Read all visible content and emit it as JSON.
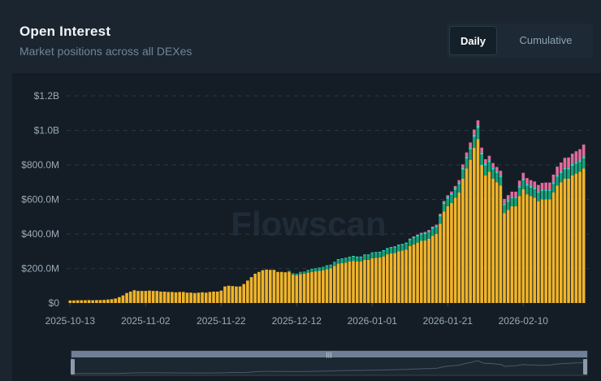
{
  "header": {
    "title": "Open Interest",
    "subtitle": "Market positions across all DEXes"
  },
  "toggle": {
    "daily_label": "Daily",
    "cumulative_label": "Cumulative",
    "selected": "Daily"
  },
  "watermark": "Flowscan",
  "colors": {
    "series_1": "#f0b429",
    "series_2": "#16a37b",
    "series_3": "#3fd4c6",
    "series_4": "#e06b9a",
    "grid": "#2a3642",
    "background": "#141d26"
  },
  "chart_data": {
    "type": "bar",
    "stacked": true,
    "title": "Open Interest",
    "subtitle": "Market positions across all DEXes",
    "xlabel": "",
    "ylabel": "",
    "ylim": [
      0,
      1200000000
    ],
    "y_tick_values": [
      0,
      200000000,
      400000000,
      600000000,
      800000000,
      1000000000,
      1200000000
    ],
    "y_tick_labels": [
      "$0",
      "$200.0M",
      "$400.0M",
      "$600.0M",
      "$800.0M",
      "$1.0B",
      "$1.2B"
    ],
    "x_tick_labels": [
      "2025-10-13",
      "2025-11-02",
      "2025-11-22",
      "2025-12-12",
      "2026-01-01",
      "2026-01-21",
      "2026-02-10"
    ],
    "x_tick_indices": [
      0,
      20,
      40,
      60,
      80,
      100,
      120
    ],
    "grid": true,
    "legend": "none",
    "series": [
      {
        "values": [
          15,
          15,
          16,
          16,
          16,
          17,
          16,
          17,
          17,
          18,
          20,
          22,
          26,
          34,
          44,
          58,
          66,
          74,
          70,
          70,
          70,
          72,
          70,
          70,
          66,
          66,
          64,
          64,
          62,
          64,
          64,
          60,
          60,
          58,
          60,
          62,
          60,
          64,
          66,
          66,
          72,
          96,
          100,
          98,
          96,
          96,
          110,
          130,
          150,
          170,
          180,
          190,
          194,
          192,
          192,
          180,
          180,
          178,
          180,
          164,
          160,
          168,
          170,
          176,
          180,
          184,
          186,
          190,
          196,
          200,
          214,
          228,
          232,
          234,
          240,
          244,
          240,
          240,
          250,
          250,
          260,
          262,
          264,
          270,
          282,
          288,
          290,
          300,
          304,
          310,
          330,
          340,
          350,
          360,
          362,
          372,
          390,
          400,
          460,
          530,
          560,
          580,
          610,
          640,
          720,
          780,
          830,
          900,
          950,
          800,
          740,
          760,
          720,
          700,
          680,
          520,
          540,
          560,
          560,
          620,
          660,
          630,
          620,
          610,
          590,
          600,
          600,
          600,
          640,
          680,
          700,
          720,
          720,
          740,
          750,
          760,
          780
        ],
        "unit": "$M"
      },
      {
        "values": [
          0,
          0,
          0,
          0,
          0,
          0,
          0,
          0,
          0,
          0,
          0,
          0,
          0,
          0,
          0,
          0,
          0,
          0,
          0,
          0,
          0,
          0,
          0,
          0,
          0,
          0,
          0,
          0,
          0,
          0,
          0,
          0,
          0,
          0,
          0,
          0,
          0,
          0,
          0,
          0,
          0,
          0,
          0,
          0,
          0,
          0,
          0,
          0,
          0,
          0,
          0,
          0,
          0,
          0,
          0,
          0,
          0,
          0,
          4,
          6,
          8,
          10,
          10,
          12,
          14,
          14,
          16,
          16,
          18,
          18,
          20,
          22,
          22,
          24,
          24,
          24,
          24,
          24,
          26,
          26,
          28,
          28,
          28,
          30,
          30,
          30,
          32,
          32,
          32,
          34,
          34,
          36,
          36,
          36,
          38,
          38,
          40,
          40,
          42,
          44,
          44,
          46,
          46,
          48,
          52,
          56,
          60,
          62,
          64,
          60,
          56,
          56,
          54,
          52,
          50,
          46,
          46,
          46,
          46,
          48,
          50,
          50,
          48,
          48,
          48,
          48,
          48,
          48,
          50,
          52,
          52,
          54,
          54,
          54,
          56,
          56,
          58
        ],
        "unit": "$M"
      },
      {
        "values": [
          0,
          0,
          0,
          0,
          0,
          0,
          0,
          0,
          0,
          0,
          0,
          0,
          0,
          0,
          0,
          0,
          0,
          0,
          0,
          0,
          0,
          0,
          0,
          0,
          0,
          0,
          0,
          0,
          0,
          0,
          0,
          0,
          0,
          0,
          0,
          0,
          0,
          0,
          0,
          0,
          0,
          0,
          0,
          0,
          0,
          0,
          0,
          0,
          0,
          0,
          0,
          0,
          0,
          0,
          0,
          0,
          0,
          0,
          2,
          2,
          2,
          2,
          2,
          3,
          3,
          3,
          3,
          3,
          4,
          4,
          4,
          4,
          4,
          4,
          4,
          5,
          5,
          5,
          5,
          5,
          5,
          5,
          5,
          6,
          6,
          6,
          6,
          6,
          6,
          6,
          7,
          7,
          7,
          7,
          8,
          8,
          8,
          8,
          9,
          9,
          10,
          10,
          10,
          10,
          11,
          12,
          12,
          13,
          14,
          12,
          11,
          11,
          11,
          10,
          10,
          9,
          9,
          9,
          9,
          9,
          10,
          10,
          10,
          10,
          10,
          10,
          10,
          10,
          10,
          10,
          10,
          11,
          11,
          11,
          11,
          11,
          12
        ],
        "unit": "$M"
      },
      {
        "values": [
          0,
          0,
          0,
          0,
          0,
          0,
          0,
          0,
          0,
          0,
          0,
          0,
          0,
          0,
          0,
          0,
          0,
          0,
          0,
          0,
          0,
          0,
          0,
          0,
          0,
          0,
          0,
          0,
          0,
          0,
          0,
          0,
          0,
          0,
          0,
          0,
          0,
          0,
          0,
          0,
          0,
          0,
          0,
          0,
          0,
          0,
          0,
          0,
          0,
          0,
          0,
          0,
          0,
          0,
          0,
          0,
          0,
          0,
          0,
          0,
          0,
          0,
          0,
          0,
          0,
          0,
          0,
          0,
          0,
          0,
          0,
          0,
          0,
          0,
          0,
          0,
          0,
          0,
          0,
          0,
          0,
          0,
          0,
          0,
          0,
          0,
          0,
          0,
          0,
          0,
          2,
          3,
          3,
          4,
          4,
          5,
          5,
          6,
          6,
          8,
          10,
          10,
          12,
          14,
          20,
          24,
          28,
          30,
          30,
          28,
          26,
          26,
          26,
          26,
          26,
          28,
          30,
          30,
          30,
          32,
          34,
          34,
          34,
          36,
          36,
          38,
          40,
          40,
          44,
          48,
          52,
          56,
          58,
          60,
          62,
          64,
          68
        ],
        "unit": "$M"
      }
    ]
  }
}
